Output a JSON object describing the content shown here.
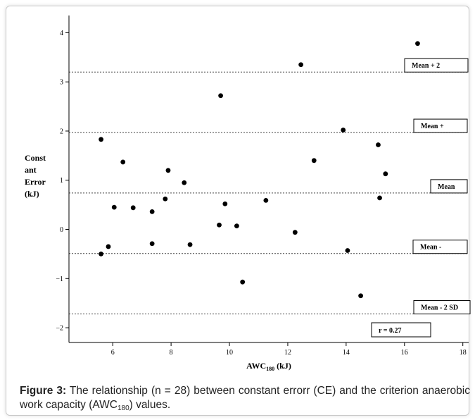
{
  "chart_data": {
    "type": "scatter",
    "title": "",
    "ylabel_lines": [
      "Const",
      "ant",
      "Error",
      "(kJ)"
    ],
    "xlabel_main": "AWC",
    "xlabel_sub": "180",
    "xlabel_unit": " (kJ)",
    "xlim": [
      4.5,
      18.2
    ],
    "ylim": [
      -2.3,
      4.35
    ],
    "x_ticks": [
      6,
      8,
      10,
      12,
      14,
      16,
      18
    ],
    "y_ticks": [
      -2,
      -1,
      0,
      1,
      2,
      3,
      4
    ],
    "grid": false,
    "reference_lines": [
      {
        "label": "Mean + 2",
        "y": 3.2
      },
      {
        "label": "Mean +",
        "y": 1.97
      },
      {
        "label": "Mean",
        "y": 0.74
      },
      {
        "label": "Mean -",
        "y": -0.49
      },
      {
        "label": "Mean - 2 SD",
        "y": -1.72
      }
    ],
    "annotation": "r = 0.27",
    "points": [
      {
        "x": 5.6,
        "y": 1.83
      },
      {
        "x": 5.6,
        "y": -0.5
      },
      {
        "x": 5.85,
        "y": -0.35
      },
      {
        "x": 6.05,
        "y": 0.45
      },
      {
        "x": 6.35,
        "y": 1.37
      },
      {
        "x": 6.7,
        "y": 0.44
      },
      {
        "x": 7.35,
        "y": 0.36
      },
      {
        "x": 7.35,
        "y": -0.29
      },
      {
        "x": 7.8,
        "y": 0.62
      },
      {
        "x": 7.9,
        "y": 1.2
      },
      {
        "x": 8.45,
        "y": 0.95
      },
      {
        "x": 8.65,
        "y": -0.31
      },
      {
        "x": 9.65,
        "y": 0.09
      },
      {
        "x": 9.7,
        "y": 2.72
      },
      {
        "x": 9.85,
        "y": 0.52
      },
      {
        "x": 10.25,
        "y": 0.07
      },
      {
        "x": 10.45,
        "y": -1.07
      },
      {
        "x": 11.25,
        "y": 0.59
      },
      {
        "x": 12.25,
        "y": -0.06
      },
      {
        "x": 12.45,
        "y": 3.35
      },
      {
        "x": 12.9,
        "y": 1.4
      },
      {
        "x": 13.9,
        "y": 2.02
      },
      {
        "x": 14.05,
        "y": -0.43
      },
      {
        "x": 14.5,
        "y": -1.35
      },
      {
        "x": 15.1,
        "y": 1.72
      },
      {
        "x": 15.15,
        "y": 0.64
      },
      {
        "x": 15.35,
        "y": 1.13
      },
      {
        "x": 16.45,
        "y": 3.78
      }
    ]
  },
  "caption": {
    "label": "Figure 3:",
    "text_before": " The relationship (n = 28) between constant errorr (CE) and the criterion anaerobic work capacity (AWC",
    "sub": "180",
    "text_after": ") values."
  }
}
